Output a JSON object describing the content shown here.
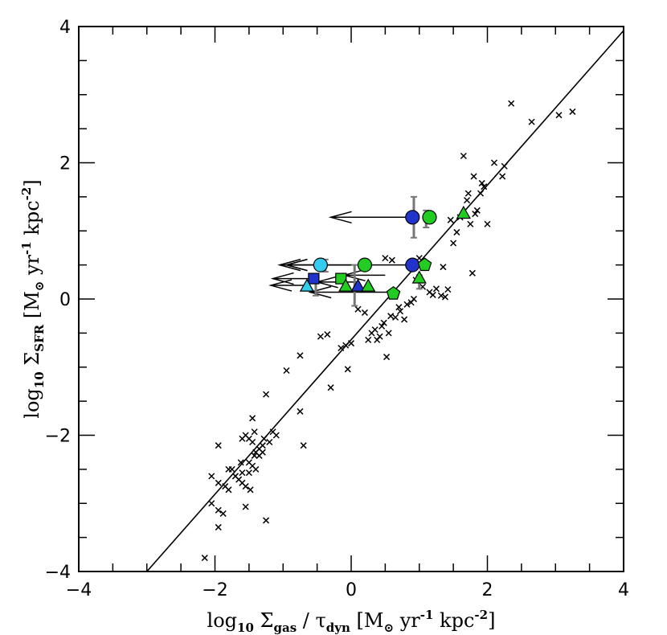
{
  "chart_data": {
    "type": "scatter",
    "xlabel": {
      "pre": "log",
      "pre_sub": "10",
      "sym": " Σ",
      "sym_sub": "gas",
      "mid": " / τ",
      "mid_sub": "dyn",
      "unit": " [M",
      "unit_sub": "⊙",
      "unit_rest": " yr",
      "exp1": "-1",
      "unit_rest2": " kpc",
      "exp2": "-2",
      "close": "]"
    },
    "ylabel": {
      "pre": "log",
      "pre_sub": "10",
      "sym": " Σ",
      "sym_sub": "SFR",
      "unit": " [M",
      "unit_sub": "⊙",
      "unit_rest": "  yr",
      "exp1": "-1",
      "unit_rest2": " kpc",
      "exp2": "-2",
      "close": "]"
    },
    "xlim": [
      -4,
      4
    ],
    "ylim": [
      -4,
      4
    ],
    "xticks": [
      -4,
      -2,
      0,
      2,
      4
    ],
    "yticks": [
      -4,
      -2,
      0,
      2,
      4
    ],
    "xtick_labels": [
      "−4",
      "−2",
      "0",
      "2",
      "4"
    ],
    "ytick_labels": [
      "−4",
      "−2",
      "0",
      "2",
      "4"
    ],
    "fit_line": {
      "x": [
        -3.0,
        4.0
      ],
      "y": [
        -4.0,
        3.94
      ]
    },
    "crosses": [
      [
        -2.15,
        -3.8
      ],
      [
        -2.05,
        -3.0
      ],
      [
        -1.95,
        -3.35
      ],
      [
        -1.95,
        -3.1
      ],
      [
        -1.88,
        -3.15
      ],
      [
        -2.05,
        -2.6
      ],
      [
        -1.95,
        -2.7
      ],
      [
        -1.85,
        -2.75
      ],
      [
        -1.8,
        -2.8
      ],
      [
        -1.75,
        -2.5
      ],
      [
        -1.7,
        -2.6
      ],
      [
        -1.65,
        -2.65
      ],
      [
        -1.62,
        -2.4
      ],
      [
        -1.6,
        -2.7
      ],
      [
        -1.55,
        -2.75
      ],
      [
        -1.5,
        -2.55
      ],
      [
        -1.48,
        -2.8
      ],
      [
        -1.45,
        -2.45
      ],
      [
        -1.42,
        -2.3
      ],
      [
        -1.4,
        -2.5
      ],
      [
        -1.55,
        -2.0
      ],
      [
        -1.5,
        -2.05
      ],
      [
        -1.45,
        -2.1
      ],
      [
        -1.42,
        -1.95
      ],
      [
        -1.4,
        -2.25
      ],
      [
        -1.35,
        -2.3
      ],
      [
        -1.3,
        -2.15
      ],
      [
        -1.28,
        -2.05
      ],
      [
        -1.2,
        -2.1
      ],
      [
        -1.15,
        -1.95
      ],
      [
        -1.1,
        -2.0
      ],
      [
        -1.45,
        -1.75
      ],
      [
        -1.25,
        -1.4
      ],
      [
        -1.25,
        -3.25
      ],
      [
        -1.55,
        -3.05
      ],
      [
        -1.95,
        -2.15
      ],
      [
        -1.7,
        -2.6
      ],
      [
        -1.6,
        -2.55
      ],
      [
        -1.5,
        -2.4
      ],
      [
        -1.35,
        -2.2
      ],
      [
        -0.95,
        -1.05
      ],
      [
        -0.75,
        -0.83
      ],
      [
        -0.75,
        -1.65
      ],
      [
        -0.7,
        -2.15
      ],
      [
        -0.45,
        -0.55
      ],
      [
        -0.35,
        -0.52
      ],
      [
        -0.3,
        -1.3
      ],
      [
        -0.15,
        -0.72
      ],
      [
        -0.08,
        -0.68
      ],
      [
        -0.05,
        -1.03
      ],
      [
        0.0,
        -0.65
      ],
      [
        0.1,
        -0.15
      ],
      [
        0.2,
        -0.2
      ],
      [
        0.25,
        -0.6
      ],
      [
        0.3,
        -0.5
      ],
      [
        0.35,
        -0.45
      ],
      [
        0.38,
        -0.6
      ],
      [
        0.42,
        -0.55
      ],
      [
        0.45,
        -0.4
      ],
      [
        0.48,
        -0.35
      ],
      [
        0.52,
        -0.85
      ],
      [
        0.55,
        -0.5
      ],
      [
        0.58,
        -0.25
      ],
      [
        0.65,
        -0.27
      ],
      [
        0.7,
        -0.12
      ],
      [
        0.72,
        -0.18
      ],
      [
        0.78,
        -0.3
      ],
      [
        0.82,
        -0.08
      ],
      [
        0.88,
        -0.05
      ],
      [
        0.92,
        0.0
      ],
      [
        0.95,
        0.28
      ],
      [
        1.05,
        0.18
      ],
      [
        1.15,
        0.1
      ],
      [
        1.2,
        0.06
      ],
      [
        1.25,
        0.15
      ],
      [
        1.32,
        0.05
      ],
      [
        1.35,
        0.47
      ],
      [
        1.38,
        0.03
      ],
      [
        1.42,
        0.14
      ],
      [
        1.46,
        1.16
      ],
      [
        1.5,
        0.82
      ],
      [
        1.55,
        0.98
      ],
      [
        1.6,
        1.2
      ],
      [
        1.65,
        2.1
      ],
      [
        1.7,
        1.45
      ],
      [
        1.72,
        1.55
      ],
      [
        1.75,
        1.1
      ],
      [
        1.78,
        0.38
      ],
      [
        1.8,
        1.8
      ],
      [
        1.82,
        1.25
      ],
      [
        1.85,
        1.3
      ],
      [
        1.9,
        1.55
      ],
      [
        1.92,
        1.7
      ],
      [
        1.95,
        1.65
      ],
      [
        2.0,
        1.1
      ],
      [
        2.1,
        2.0
      ],
      [
        2.22,
        1.8
      ],
      [
        2.25,
        1.95
      ],
      [
        2.35,
        2.87
      ],
      [
        2.65,
        2.6
      ],
      [
        3.05,
        2.7
      ],
      [
        3.25,
        2.75
      ],
      [
        0.6,
        0.57
      ],
      [
        0.5,
        0.6
      ],
      [
        1.0,
        0.6
      ],
      [
        -1.3,
        -2.25
      ],
      [
        -1.6,
        -2.05
      ],
      [
        -1.8,
        -2.5
      ]
    ],
    "arrows": [
      {
        "from": [
          0.92,
          1.2
        ],
        "to": [
          -0.3,
          1.2
        ],
        "color": "#000000"
      },
      {
        "from": [
          0.92,
          0.5
        ],
        "to": [
          -0.95,
          0.5
        ],
        "color": "#000000"
      },
      {
        "from": [
          0.0,
          0.5
        ],
        "to": [
          -0.95,
          0.5
        ],
        "color": "#000000"
      },
      {
        "from": [
          -0.5,
          0.5
        ],
        "to": [
          -1.05,
          0.5
        ],
        "color": "#000000"
      },
      {
        "from": [
          -0.55,
          0.3
        ],
        "to": [
          -1.15,
          0.3
        ],
        "color": "#000000"
      },
      {
        "from": [
          0.5,
          0.35
        ],
        "to": [
          -0.1,
          0.35
        ],
        "color": "#000000"
      },
      {
        "from": [
          -0.6,
          0.2
        ],
        "to": [
          -1.18,
          0.2
        ],
        "color": "#000000"
      },
      {
        "from": [
          0.55,
          0.1
        ],
        "to": [
          -0.6,
          0.1
        ],
        "color": "#000000"
      },
      {
        "from": [
          0.1,
          0.25
        ],
        "to": [
          -0.5,
          0.25
        ],
        "color": "#000000"
      }
    ],
    "errorbars": [
      {
        "x": 0.92,
        "y0": 0.9,
        "y1": 1.5
      },
      {
        "x": 1.1,
        "y0": 1.05,
        "y1": 1.3
      },
      {
        "x": 0.05,
        "y0": -0.1,
        "y1": 0.5
      },
      {
        "x": -0.38,
        "y0": 0.4,
        "y1": 0.58
      },
      {
        "x": -0.52,
        "y0": 0.05,
        "y1": 0.3
      },
      {
        "x": 1.0,
        "y0": 0.15,
        "y1": 0.35
      },
      {
        "x": 0.6,
        "y0": 0.05,
        "y1": 0.12
      }
    ],
    "markers": [
      {
        "shape": "circle",
        "x": 0.9,
        "y": 1.2,
        "color": "#2233cc"
      },
      {
        "shape": "circle",
        "x": 1.15,
        "y": 1.2,
        "color": "#22cc22"
      },
      {
        "shape": "triangle",
        "x": 1.65,
        "y": 1.25,
        "color": "#22cc22"
      },
      {
        "shape": "circle",
        "x": -0.45,
        "y": 0.5,
        "color": "#33ccee"
      },
      {
        "shape": "circle",
        "x": 0.2,
        "y": 0.5,
        "color": "#22cc22"
      },
      {
        "shape": "circle",
        "x": 0.9,
        "y": 0.5,
        "color": "#2233cc"
      },
      {
        "shape": "pentagon",
        "x": 1.08,
        "y": 0.5,
        "color": "#22cc22"
      },
      {
        "shape": "square",
        "x": -0.55,
        "y": 0.3,
        "color": "#2233cc"
      },
      {
        "shape": "square",
        "x": -0.15,
        "y": 0.3,
        "color": "#22cc22"
      },
      {
        "shape": "triangle",
        "x": -0.65,
        "y": 0.18,
        "color": "#33ccee"
      },
      {
        "shape": "triangle",
        "x": -0.08,
        "y": 0.18,
        "color": "#22cc22"
      },
      {
        "shape": "triangle",
        "x": 0.1,
        "y": 0.18,
        "color": "#2233cc"
      },
      {
        "shape": "triangle",
        "x": 0.25,
        "y": 0.18,
        "color": "#22cc22"
      },
      {
        "shape": "triangle",
        "x": 1.0,
        "y": 0.3,
        "color": "#22cc22"
      },
      {
        "shape": "pentagon",
        "x": 0.62,
        "y": 0.08,
        "color": "#22cc22"
      }
    ]
  }
}
